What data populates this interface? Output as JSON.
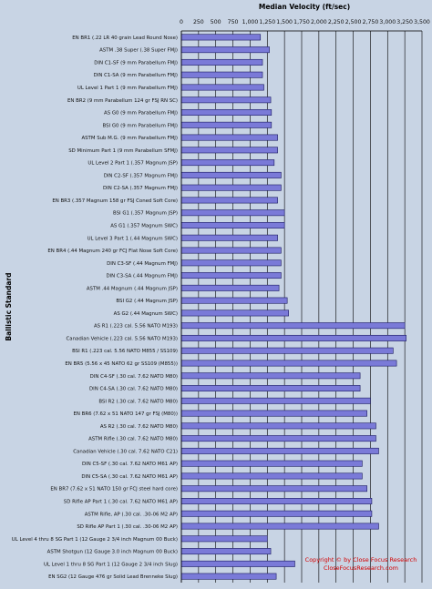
{
  "chart_data": {
    "type": "bar",
    "orientation": "horizontal",
    "title": "Median Velocity (ft/sec)",
    "ylabel": "Ballistic Standard",
    "xlim": [
      0,
      3500
    ],
    "xticks": [
      0,
      250,
      500,
      750,
      1000,
      1250,
      1500,
      1750,
      2000,
      2250,
      2500,
      2750,
      3000,
      3250,
      3500
    ],
    "grid": true,
    "bar_color": "#7a7ad8",
    "categories": [
      "EN BR1 (.22 LR 40 grain Lead Round Nose)",
      "ASTM .38 Super (.38 Super FMJ)",
      "DIN C1-SF (9 mm Parabellum FMJ)",
      "DIN C1-SA (9 mm Parabellum FMJ)",
      "UL Level 1 Part 1 (9 mm Parabellum FMJ)",
      "EN BR2 (9 mm Parabellum 124 gr FSJ RN SC)",
      "AS G0 (9 mm Parabellum FMJ)",
      "BSI G0 (9 mm Parabellum FMJ)",
      "ASTM Sub M.G. (9 mm Parabellum FMJ)",
      "SD Minimum Part 1 (9 mm Parabellum SFMJ)",
      "UL Level 2 Part 1 (.357 Magnum JSP)",
      "DIN C2-SF (.357 Magnum FMJ)",
      "DIN C2-SA (.357 Magnum FMJ)",
      "EN BR3 (.357 Magnum 158 gr FSJ Coned Soft Core)",
      "BSI G1 (.357 Magnum JSP)",
      "AS G1 (.357 Magnum SWC)",
      "UL Level 3 Part 1 (.44 Magnum SWC)",
      "EN BR4 (.44 Magnum 240 gr FCJ Flat Nose Soft Core)",
      "DIN C3-SF (.44 Magnum FMJ)",
      "DIN C3-SA (.44 Magnum FMJ)",
      "ASTM .44 Magnum (.44 Magnum JSP)",
      "BSI G2 (.44 Magnum JSP)",
      "AS G2 (.44 Magnum SWC)",
      "AS R1 (.223 cal. 5.56 NATO M193)",
      "Canadian Vehicle (.223 cal. 5.56 NATO M193)",
      "BSI R1 (.223 cal. 5.56 NATO M855 / SS109)",
      "EN BR5 (5.56 x 45 NATO 62 gr SS109 (M855))",
      "DIN C4-SF (.30 cal. 7.62 NATO M80)",
      "DIN C4-SA (.30 cal. 7.62 NATO M80)",
      "BSI R2 (.30 cal. 7.62 NATO M80)",
      "EN BR6 (7.62 x 51 NATO 147 gr FSJ (M80))",
      "AS R2 (.30 cal. 7.62 NATO M80)",
      "ASTM Rifle (.30 cal. 7.62 NATO M80)",
      "Canadian Vehicle (.30 cal. 7.62 NATO C21)",
      "DIN C5-SF (.30 cal. 7.62 NATO M61 AP)",
      "DIN C5-SA (.30 cal. 7.62 NATO M61 AP)",
      "EN BR7 (7.62 x 51 NATO 150 gr FCJ steel hard core)",
      "SD Rifle AP Part 1 (.30 cal. 7.62 NATO M61 AP)",
      "ASTM Rifle, AP (.30 cal. .30-06 M2 AP)",
      "SD Rifle AP Part 1 (.30 cal. .30-06 M2 AP)",
      "UL Level 4 thru 8 SG Part 1 (12 Gauge 2 3/4 inch Magnum 00 Buck)",
      "ASTM Shotgun (12 Gauge 3.0 inch Magnum 00 Buck)",
      "UL Level 1 thru 8 SG Part 1 (12 Gauge 2 3/4 inch Slug)",
      "EN SG2 (12 Gauge 476 gr Solid Lead Brenneke Slug)"
    ],
    "values": [
      1150,
      1280,
      1180,
      1180,
      1200,
      1300,
      1310,
      1310,
      1400,
      1400,
      1350,
      1450,
      1450,
      1400,
      1500,
      1500,
      1400,
      1450,
      1450,
      1450,
      1420,
      1540,
      1560,
      3250,
      3270,
      3080,
      3130,
      2600,
      2600,
      2750,
      2700,
      2830,
      2830,
      2870,
      2630,
      2630,
      2700,
      2770,
      2770,
      2870,
      1250,
      1300,
      1650,
      1380
    ]
  },
  "copyright": {
    "line1": "Copyright © by  Close Focus  Research",
    "line2": "CloseFocusResearch.com"
  }
}
